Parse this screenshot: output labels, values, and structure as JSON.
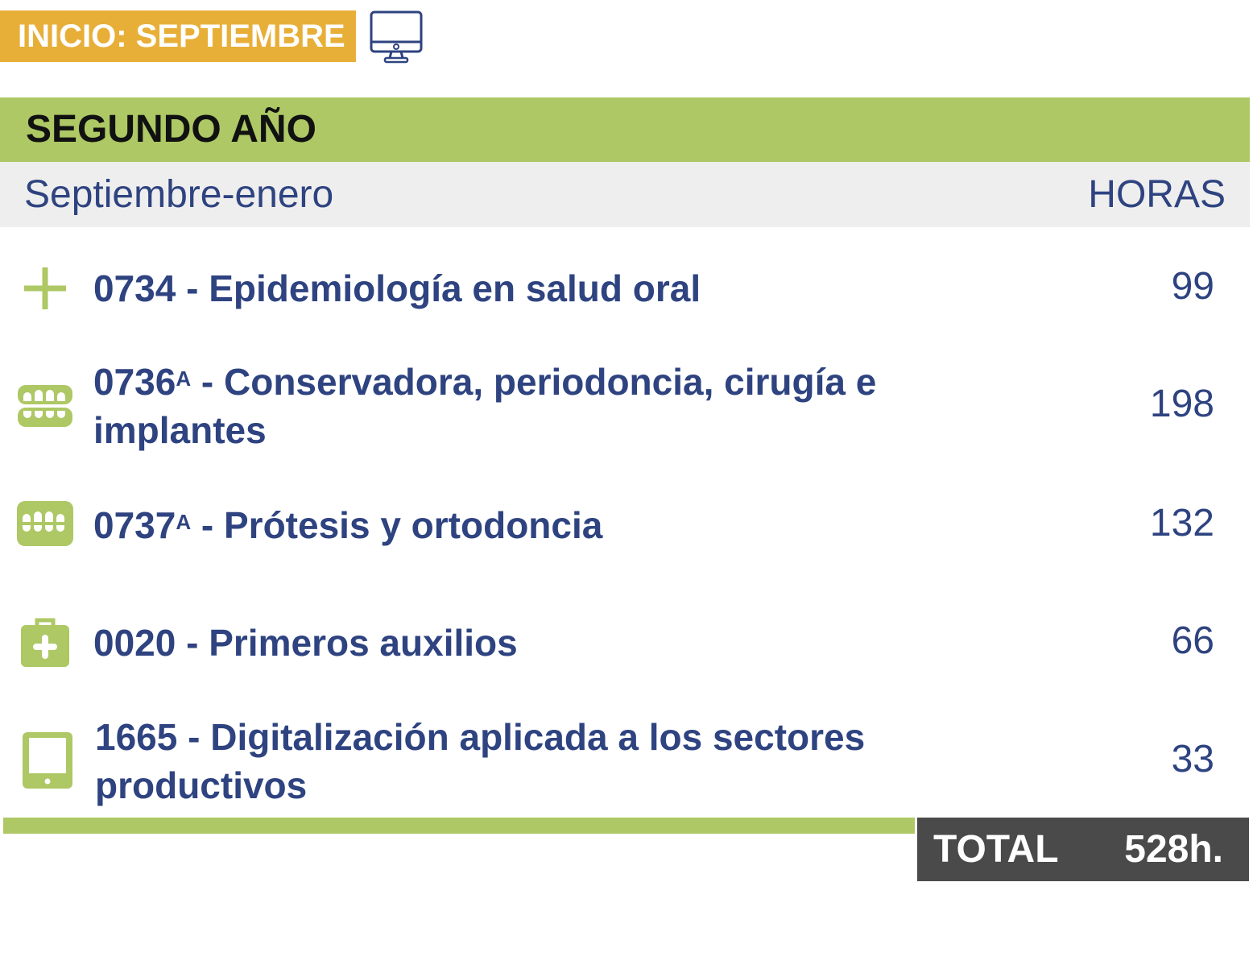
{
  "header": {
    "start_label": "INICIO: SEPTIEMBRE",
    "mode_icon": "desktop-monitor-icon"
  },
  "year": {
    "title": "SEGUNDO AÑO",
    "period": "Septiembre-enero",
    "hours_header": "HORAS"
  },
  "modules": [
    {
      "code": "0734",
      "sup": "",
      "name": " - Epidemiología en salud oral",
      "hours": "99",
      "icon": "plus-icon"
    },
    {
      "code": "0736",
      "sup": "A",
      "name": " - Conservadora, periodoncia, cirugía e implantes",
      "hours": "198",
      "icon": "teeth-open-icon"
    },
    {
      "code": "0737",
      "sup": "A",
      "name": " - Prótesis y ortodoncia",
      "hours": "132",
      "icon": "teeth-closed-icon"
    },
    {
      "code": "0020",
      "sup": "",
      "name": " - Primeros auxilios",
      "hours": "66",
      "icon": "first-aid-kit-icon"
    },
    {
      "code": "1665",
      "sup": "",
      "name": " - Digitalización aplicada a los sectores productivos",
      "hours": "33",
      "icon": "tablet-icon"
    }
  ],
  "total": {
    "label": "TOTAL",
    "value": "528h."
  },
  "colors": {
    "orange": "#e8af38",
    "green": "#adc864",
    "navy": "#2e4380",
    "grey": "#eeeeee",
    "dark": "#4a4a4a"
  }
}
